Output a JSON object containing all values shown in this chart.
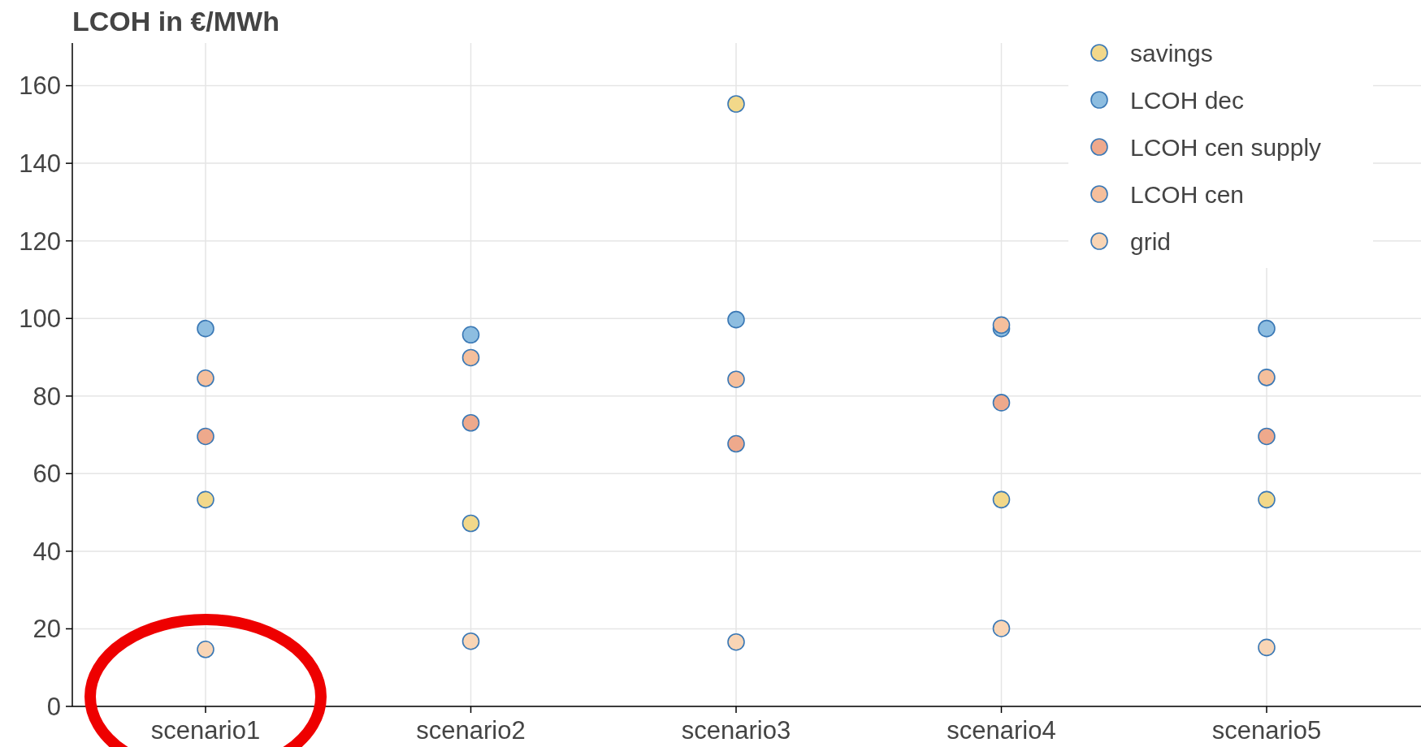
{
  "chart_data": {
    "type": "scatter",
    "title": "LCOH in €/MWh",
    "categories": [
      "scenario1",
      "scenario2",
      "scenario3",
      "scenario4",
      "scenario5"
    ],
    "series": [
      {
        "name": "savings",
        "color": "#f2d88a",
        "values": [
          53.3,
          47.2,
          155.3,
          53.3,
          53.3
        ]
      },
      {
        "name": "LCOH dec",
        "color": "#8dbde0",
        "values": [
          97.4,
          95.8,
          99.7,
          97.4,
          97.4
        ]
      },
      {
        "name": "LCOH cen supply",
        "color": "#eea98c",
        "values": [
          69.6,
          73.1,
          67.7,
          78.3,
          69.6
        ]
      },
      {
        "name": "LCOH cen",
        "color": "#f5bf9c",
        "values": [
          84.6,
          89.9,
          84.3,
          98.3,
          84.8
        ]
      },
      {
        "name": "grid",
        "color": "#f9d5b5",
        "values": [
          14.7,
          16.8,
          16.6,
          20.1,
          15.2
        ]
      }
    ],
    "ylim": [
      0,
      171
    ],
    "yticks": [
      0,
      20,
      40,
      60,
      80,
      100,
      120,
      140,
      160
    ],
    "grid": true,
    "legend": "top right",
    "marker": "circle"
  }
}
